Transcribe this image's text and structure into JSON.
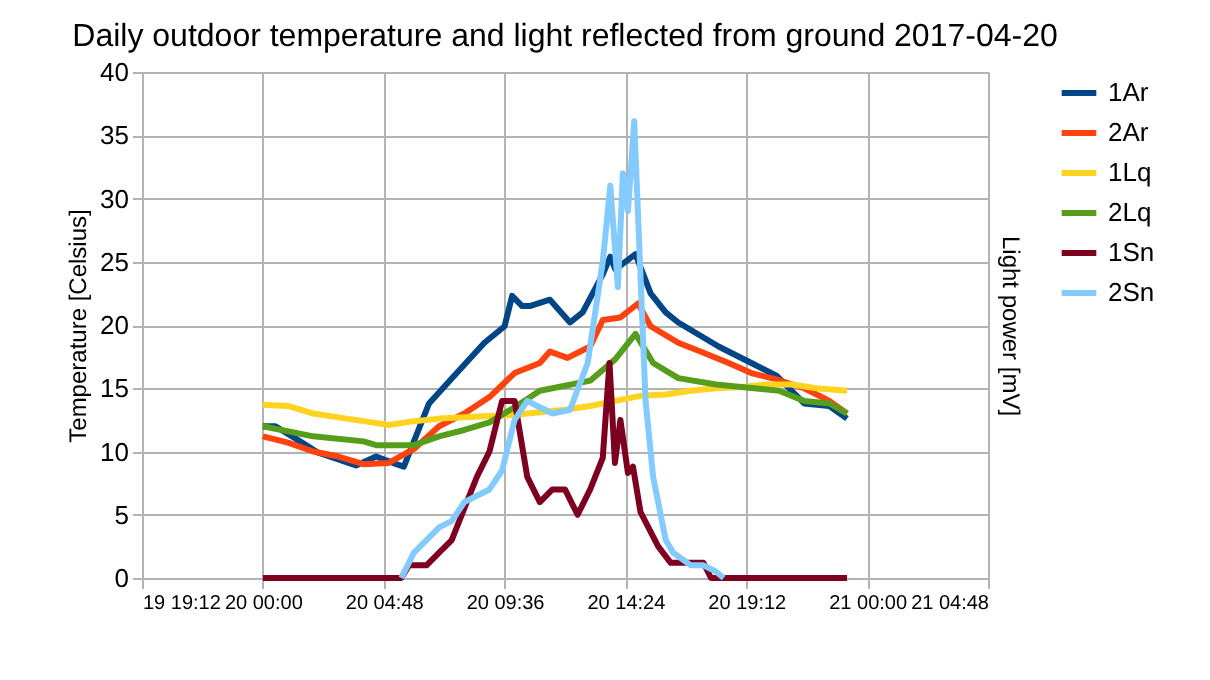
{
  "chart_data": {
    "type": "line",
    "title": "Daily outdoor temperature and light reflected from ground 2017-04-20",
    "ylabel": "Temperature [Celsius]",
    "y2label": "Light power [mV]",
    "xlim": [
      "2017-04-19T19:12",
      "2017-04-21T04:48"
    ],
    "xticks": [
      {
        "value": "2017-04-19T19:12",
        "label": "19 19:12"
      },
      {
        "value": "2017-04-20T00:00",
        "label": "20 00:00"
      },
      {
        "value": "2017-04-20T04:48",
        "label": "20 04:48"
      },
      {
        "value": "2017-04-20T09:36",
        "label": "20 09:36"
      },
      {
        "value": "2017-04-20T14:24",
        "label": "20 14:24"
      },
      {
        "value": "2017-04-20T19:12",
        "label": "20 19:12"
      },
      {
        "value": "2017-04-21T00:00",
        "label": "21 00:00"
      },
      {
        "value": "2017-04-21T04:48",
        "label": "21 04:48"
      }
    ],
    "ylim": [
      0,
      40
    ],
    "yticks": [
      0,
      5,
      10,
      15,
      20,
      25,
      30,
      35,
      40
    ],
    "grid": true,
    "legend": "right",
    "marker": "none",
    "line_style": "solid",
    "series": [
      {
        "name": "1Ar",
        "color": "#004586",
        "x": [
          "2017-04-20T00:00",
          "2017-04-20T00:30",
          "2017-04-20T01:24",
          "2017-04-20T02:12",
          "2017-04-20T03:42",
          "2017-04-20T04:30",
          "2017-04-20T05:18",
          "2017-04-20T05:36",
          "2017-04-20T06:36",
          "2017-04-20T07:42",
          "2017-04-20T08:48",
          "2017-04-20T09:36",
          "2017-04-20T09:54",
          "2017-04-20T10:18",
          "2017-04-20T10:36",
          "2017-04-20T11:24",
          "2017-04-20T12:12",
          "2017-04-20T12:42",
          "2017-04-20T13:30",
          "2017-04-20T13:48",
          "2017-04-20T14:00",
          "2017-04-20T14:48",
          "2017-04-20T15:24",
          "2017-04-20T16:00",
          "2017-04-20T16:30",
          "2017-04-20T18:06",
          "2017-04-20T19:24",
          "2017-04-20T20:24",
          "2017-04-20T21:30",
          "2017-04-20T22:30",
          "2017-04-20T23:12"
        ],
        "values": [
          12,
          12,
          10.9,
          9.9,
          8.9,
          9.6,
          9,
          8.8,
          13.8,
          16.2,
          18.6,
          19.9,
          22.3,
          21.5,
          21.5,
          22,
          20.2,
          21,
          24,
          25.4,
          24.4,
          25.6,
          22.5,
          21,
          20.2,
          18.3,
          17,
          16,
          13.8,
          13.6,
          12.6
        ]
      },
      {
        "name": "2Ar",
        "color": "#ff420e",
        "x": [
          "2017-04-20T00:00",
          "2017-04-20T01:00",
          "2017-04-20T02:00",
          "2017-04-20T03:00",
          "2017-04-20T04:00",
          "2017-04-20T05:00",
          "2017-04-20T06:00",
          "2017-04-20T07:00",
          "2017-04-20T08:00",
          "2017-04-20T09:00",
          "2017-04-20T10:00",
          "2017-04-20T11:00",
          "2017-04-20T11:24",
          "2017-04-20T12:06",
          "2017-04-20T13:00",
          "2017-04-20T13:30",
          "2017-04-20T14:12",
          "2017-04-20T14:54",
          "2017-04-20T15:24",
          "2017-04-20T16:30",
          "2017-04-20T17:30",
          "2017-04-20T18:30",
          "2017-04-20T19:24",
          "2017-04-20T20:24",
          "2017-04-20T21:30",
          "2017-04-20T22:30",
          "2017-04-20T23:12"
        ],
        "values": [
          11.2,
          10.7,
          10,
          9.6,
          9,
          9.1,
          10.2,
          12,
          13,
          14.3,
          16.2,
          17,
          17.9,
          17.4,
          18.3,
          20.4,
          20.6,
          21.7,
          19.9,
          18.6,
          17.8,
          17,
          16.2,
          15.7,
          15,
          14,
          13
        ]
      },
      {
        "name": "1Lq",
        "color": "#ffd320",
        "x": [
          "2017-04-20T00:00",
          "2017-04-20T01:00",
          "2017-04-20T02:00",
          "2017-04-20T03:00",
          "2017-04-20T04:00",
          "2017-04-20T05:00",
          "2017-04-20T06:00",
          "2017-04-20T07:00",
          "2017-04-20T08:00",
          "2017-04-20T09:00",
          "2017-04-20T10:00",
          "2017-04-20T11:00",
          "2017-04-20T12:00",
          "2017-04-20T13:00",
          "2017-04-20T14:00",
          "2017-04-20T15:00",
          "2017-04-20T16:00",
          "2017-04-20T17:00",
          "2017-04-20T18:00",
          "2017-04-20T19:00",
          "2017-04-20T20:00",
          "2017-04-20T21:00",
          "2017-04-20T22:00",
          "2017-04-20T23:12"
        ],
        "values": [
          13.7,
          13.6,
          13,
          12.7,
          12.4,
          12.1,
          12.4,
          12.6,
          12.7,
          12.8,
          12.9,
          13.1,
          13.3,
          13.6,
          14,
          14.4,
          14.5,
          14.8,
          15,
          15.1,
          15.3,
          15.3,
          15,
          14.8
        ]
      },
      {
        "name": "2Lq",
        "color": "#579d1c",
        "x": [
          "2017-04-20T00:00",
          "2017-04-20T02:00",
          "2017-04-20T04:00",
          "2017-04-20T04:30",
          "2017-04-20T06:00",
          "2017-04-20T07:00",
          "2017-04-20T08:00",
          "2017-04-20T09:00",
          "2017-04-20T10:00",
          "2017-04-20T11:00",
          "2017-04-20T12:00",
          "2017-04-20T13:00",
          "2017-04-20T14:00",
          "2017-04-20T14:48",
          "2017-04-20T15:30",
          "2017-04-20T16:30",
          "2017-04-20T18:00",
          "2017-04-20T19:30",
          "2017-04-20T20:30",
          "2017-04-20T21:30",
          "2017-04-20T22:30",
          "2017-04-20T23:12"
        ],
        "values": [
          12,
          11.2,
          10.8,
          10.5,
          10.5,
          11.2,
          11.7,
          12.3,
          13.5,
          14.8,
          15.2,
          15.6,
          17.3,
          19.3,
          17,
          15.8,
          15.3,
          15,
          14.8,
          14,
          13.8,
          13
        ]
      },
      {
        "name": "1Sn",
        "color": "#7e0021",
        "x": [
          "2017-04-20T00:00",
          "2017-04-20T05:30",
          "2017-04-20T05:48",
          "2017-04-20T06:30",
          "2017-04-20T07:00",
          "2017-04-20T07:30",
          "2017-04-20T08:00",
          "2017-04-20T08:30",
          "2017-04-20T09:00",
          "2017-04-20T09:30",
          "2017-04-20T10:00",
          "2017-04-20T10:30",
          "2017-04-20T11:00",
          "2017-04-20T11:30",
          "2017-04-20T12:00",
          "2017-04-20T12:30",
          "2017-04-20T13:00",
          "2017-04-20T13:30",
          "2017-04-20T13:46",
          "2017-04-20T13:59",
          "2017-04-20T14:12",
          "2017-04-20T14:30",
          "2017-04-20T14:42",
          "2017-04-20T15:00",
          "2017-04-20T15:42",
          "2017-04-20T16:12",
          "2017-04-20T17:30",
          "2017-04-20T17:48",
          "2017-04-20T23:12"
        ],
        "values": [
          0,
          0,
          1,
          1,
          2,
          3,
          5.5,
          8,
          10,
          14,
          14,
          8,
          6,
          7,
          7,
          5,
          7,
          9.5,
          17,
          9.1,
          12.5,
          8.3,
          8.8,
          5.2,
          2.5,
          1.2,
          1.2,
          0,
          0
        ]
      },
      {
        "name": "2Sn",
        "color": "#83caff",
        "x": [
          "2017-04-20T05:30",
          "2017-04-20T06:00",
          "2017-04-20T06:30",
          "2017-04-20T07:00",
          "2017-04-20T07:30",
          "2017-04-20T08:00",
          "2017-04-20T08:30",
          "2017-04-20T09:00",
          "2017-04-20T09:30",
          "2017-04-20T10:00",
          "2017-04-20T10:30",
          "2017-04-20T11:00",
          "2017-04-20T11:30",
          "2017-04-20T12:12",
          "2017-04-20T12:54",
          "2017-04-20T13:30",
          "2017-04-20T13:48",
          "2017-04-20T14:06",
          "2017-04-20T14:18",
          "2017-04-20T14:30",
          "2017-04-20T14:45",
          "2017-04-20T15:12",
          "2017-04-20T15:30",
          "2017-04-20T16:00",
          "2017-04-20T16:18",
          "2017-04-20T17:00",
          "2017-04-20T17:30",
          "2017-04-20T18:00",
          "2017-04-20T18:18"
        ],
        "values": [
          0,
          2,
          3,
          4,
          4.5,
          6,
          6.5,
          7,
          8.5,
          12.5,
          14,
          13.5,
          13,
          13.3,
          17,
          25,
          31,
          23,
          32,
          29,
          36.1,
          14,
          8,
          3,
          2,
          1,
          1,
          0.5,
          0
        ]
      }
    ]
  }
}
